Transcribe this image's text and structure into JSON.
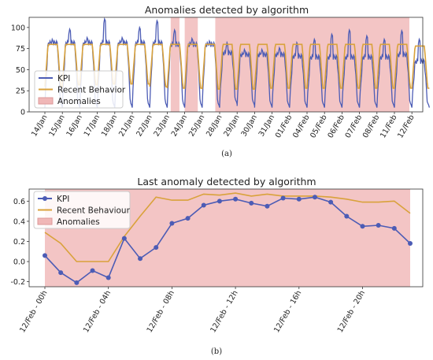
{
  "chart_data": [
    {
      "type": "line",
      "title": "Anomalies detected by algorithm",
      "caption": "(a)",
      "xlabel": "",
      "ylabel": "",
      "ylim": [
        0,
        112
      ],
      "yticks": [
        0,
        25,
        50,
        75,
        100
      ],
      "categories": [
        "14/Jan",
        "15/Jan",
        "16/Jan",
        "17/Jan",
        "18/Jan",
        "21/Jan",
        "22/Jan",
        "23/Jan",
        "24/Jan",
        "25/Jan",
        "28/Jan",
        "29/Jan",
        "30/Jan",
        "31/Jan",
        "01/Feb",
        "04/Feb",
        "05/Feb",
        "06/Feb",
        "07/Feb",
        "08/Feb",
        "11/Feb",
        "12/Feb"
      ],
      "anomaly_spans": [
        [
          7.2,
          7.7
        ],
        [
          8.0,
          8.75
        ],
        [
          9.75,
          22.3
        ]
      ],
      "legend": {
        "position": "lower-left",
        "entries": [
          {
            "label": "KPI",
            "kind": "line",
            "color": "#4c5cb5"
          },
          {
            "label": "Recent Behavior",
            "kind": "line",
            "color": "#d9a23b"
          },
          {
            "label": "Anomalies",
            "kind": "patch",
            "color": "#f0b7b7"
          }
        ]
      },
      "kpi_daily": [
        {
          "low": 8,
          "high": 82,
          "peak": 84
        },
        {
          "low": 8,
          "high": 82,
          "peak": 96
        },
        {
          "low": 8,
          "high": 82,
          "peak": 86
        },
        {
          "low": 8,
          "high": 82,
          "peak": 108
        },
        {
          "low": 8,
          "high": 82,
          "peak": 86
        },
        {
          "low": 8,
          "high": 82,
          "peak": 98
        },
        {
          "low": 8,
          "high": 82,
          "peak": 106
        },
        {
          "low": 8,
          "high": 80,
          "peak": 95
        },
        {
          "low": 8,
          "high": 80,
          "peak": 85
        },
        {
          "low": 8,
          "high": 80,
          "peak": 82
        },
        {
          "low": 12,
          "high": 70,
          "peak": 80
        },
        {
          "low": 10,
          "high": 68,
          "peak": 72
        },
        {
          "low": 8,
          "high": 68,
          "peak": 72
        },
        {
          "low": 8,
          "high": 68,
          "peak": 74
        },
        {
          "low": 8,
          "high": 66,
          "peak": 80
        },
        {
          "low": 8,
          "high": 65,
          "peak": 84
        },
        {
          "low": 8,
          "high": 65,
          "peak": 90
        },
        {
          "low": 8,
          "high": 65,
          "peak": 95
        },
        {
          "low": 8,
          "high": 65,
          "peak": 88
        },
        {
          "low": 8,
          "high": 65,
          "peak": 84
        },
        {
          "low": 8,
          "high": 68,
          "peak": 94
        },
        {
          "low": 8,
          "high": 60,
          "peak": 84
        }
      ],
      "recent_behavior_daily": [
        {
          "low": 30,
          "high": 80
        },
        {
          "low": 32,
          "high": 80
        },
        {
          "low": 32,
          "high": 80
        },
        {
          "low": 33,
          "high": 80
        },
        {
          "low": 33,
          "high": 80
        },
        {
          "low": 33,
          "high": 80
        },
        {
          "low": 30,
          "high": 80
        },
        {
          "low": 28,
          "high": 80
        },
        {
          "low": 28,
          "high": 80
        },
        {
          "low": 27,
          "high": 80
        },
        {
          "low": 27,
          "high": 80
        },
        {
          "low": 27,
          "high": 80
        },
        {
          "low": 28,
          "high": 80
        },
        {
          "low": 28,
          "high": 80
        },
        {
          "low": 28,
          "high": 80
        },
        {
          "low": 28,
          "high": 80
        },
        {
          "low": 28,
          "high": 80
        },
        {
          "low": 28,
          "high": 80
        },
        {
          "low": 28,
          "high": 80
        },
        {
          "low": 28,
          "high": 80
        },
        {
          "low": 28,
          "high": 80
        },
        {
          "low": 28,
          "high": 78
        }
      ]
    },
    {
      "type": "line",
      "title": "Last anomaly detected by algorithm",
      "caption": "(b)",
      "xlabel": "",
      "ylabel": "",
      "ylim": [
        -0.25,
        0.72
      ],
      "yticks": [
        -0.2,
        0.0,
        0.2,
        0.4,
        0.6
      ],
      "ytick_labels": [
        "-0.2",
        "0.0",
        "0.2",
        "0.4",
        "0.6"
      ],
      "x": [
        0,
        1,
        2,
        3,
        4,
        5,
        6,
        7,
        8,
        9,
        10,
        11,
        12,
        13,
        14,
        15,
        16,
        17,
        18,
        19,
        20,
        21,
        22,
        23
      ],
      "xtick_positions": [
        0,
        4,
        8,
        12,
        16,
        20
      ],
      "xtick_labels": [
        "12/Feb - 00h",
        "12/Feb - 04h",
        "12/Feb - 08h",
        "12/Feb - 12h",
        "12/Feb - 16h",
        "12/Feb - 20h"
      ],
      "anomaly_span": [
        0,
        23
      ],
      "series": [
        {
          "name": "KPI",
          "color": "#4c5cb5",
          "marker": "circle",
          "values": [
            0.06,
            -0.11,
            -0.21,
            -0.09,
            -0.16,
            0.23,
            0.03,
            0.14,
            0.38,
            0.43,
            0.56,
            0.6,
            0.62,
            0.58,
            0.55,
            0.63,
            0.62,
            0.64,
            0.59,
            0.45,
            0.35,
            0.36,
            0.33,
            0.18
          ]
        },
        {
          "name": "Recent Behaviour",
          "color": "#d9a23b",
          "marker": "none",
          "values": [
            0.29,
            0.18,
            0.0,
            0.0,
            0.0,
            0.25,
            0.45,
            0.64,
            0.61,
            0.61,
            0.67,
            0.66,
            0.68,
            0.65,
            0.67,
            0.65,
            0.65,
            0.65,
            0.64,
            0.62,
            0.59,
            0.59,
            0.6,
            0.48
          ]
        }
      ],
      "legend": {
        "position": "top-left",
        "entries": [
          {
            "label": "KPI",
            "kind": "line-marker",
            "color": "#4c5cb5"
          },
          {
            "label": "Recent Behaviour",
            "kind": "line",
            "color": "#d9a23b"
          },
          {
            "label": "Anomalies",
            "kind": "patch",
            "color": "#f0b7b7"
          }
        ]
      }
    }
  ]
}
